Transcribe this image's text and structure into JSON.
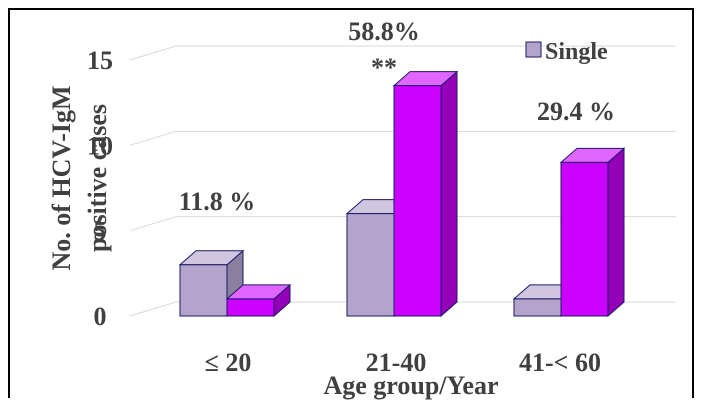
{
  "chart_data": {
    "type": "bar",
    "style": "3d-clustered-column",
    "categories": [
      "≤ 20",
      "21-40",
      "41-< 60"
    ],
    "series": [
      {
        "name": "Single",
        "color": "#b4a4cc",
        "values": [
          3,
          6,
          1
        ]
      },
      {
        "name": "",
        "color": "#cc00ff",
        "values": [
          1,
          13.5,
          9
        ]
      }
    ],
    "ylim": [
      0,
      15
    ],
    "yticks": [
      0,
      5,
      10,
      15
    ],
    "ytick_labels": [
      "0",
      "5",
      "10",
      "15"
    ],
    "ylabel": "No. of HCV-IgM positive cases",
    "xlabel": "Age group/Year",
    "annotations": [
      {
        "category": "≤ 20",
        "text": "11.8 %"
      },
      {
        "category": "21-40",
        "text": "58.8%"
      },
      {
        "category": "21-40",
        "text": "**"
      },
      {
        "category": "41-< 60",
        "text": "29.4 %"
      }
    ],
    "legend": {
      "position": "top-right",
      "entries": [
        "Single"
      ]
    },
    "grid": true
  }
}
